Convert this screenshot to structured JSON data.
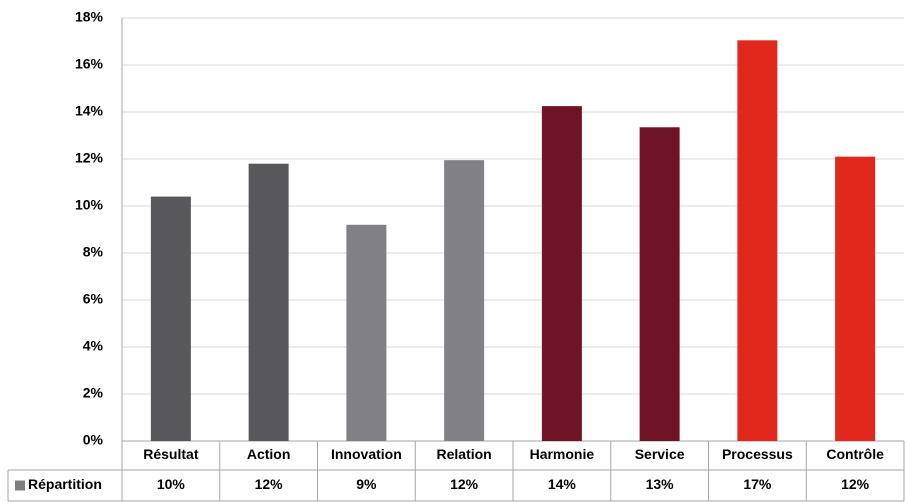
{
  "chart_data": {
    "type": "bar",
    "categories": [
      "Résultat",
      "Action",
      "Innovation",
      "Relation",
      "Harmonie",
      "Service",
      "Processus",
      "Contrôle"
    ],
    "series": [
      {
        "name": "Répartition",
        "color": "#7f7f7f",
        "colors": [
          "#58585c",
          "#58585c",
          "#818087",
          "#818087",
          "#6e1426",
          "#6e1426",
          "#e0281c",
          "#e0281c"
        ],
        "values": [
          10.4,
          11.8,
          9.2,
          11.95,
          14.25,
          13.35,
          17.05,
          12.1
        ],
        "value_labels": [
          "10%",
          "12%",
          "9%",
          "12%",
          "14%",
          "13%",
          "17%",
          "12%"
        ]
      }
    ],
    "ylim": [
      0,
      18
    ],
    "yticks": [
      {
        "value": 0,
        "label": "0%"
      },
      {
        "value": 2,
        "label": "2%"
      },
      {
        "value": 4,
        "label": "4%"
      },
      {
        "value": 6,
        "label": "6%"
      },
      {
        "value": 8,
        "label": "8%"
      },
      {
        "value": 10,
        "label": "10%"
      },
      {
        "value": 12,
        "label": "12%"
      },
      {
        "value": 14,
        "label": "14%"
      },
      {
        "value": 16,
        "label": "16%"
      },
      {
        "value": 18,
        "label": "18%"
      }
    ],
    "grid": true
  }
}
